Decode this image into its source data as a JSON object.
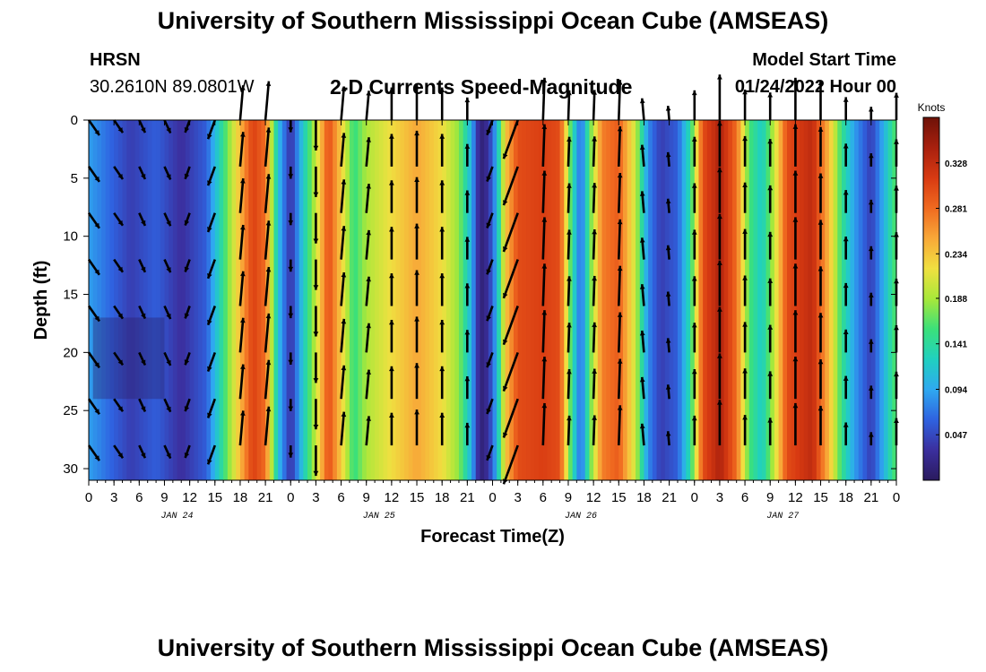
{
  "header": {
    "title": "University of Southern Mississippi Ocean Cube (AMSEAS)",
    "station": "HRSN",
    "coords": "30.2610N  89.0801W",
    "subtitle": "2-D Currents Speed-Magnitude",
    "start_label": "Model Start Time",
    "start_value": "01/24/2022 Hour 00"
  },
  "footer": {
    "title": "University of Southern Mississippi Ocean Cube (AMSEAS)"
  },
  "chart_data": {
    "type": "heatmap",
    "title": "2-D Currents Speed-Magnitude",
    "xlabel": "Forecast Time(Z)",
    "ylabel": "Depth (ft)",
    "x_range_hours": [
      0,
      96
    ],
    "y_range_ft": [
      0,
      31
    ],
    "x_tick_labels": [
      "0",
      "3",
      "6",
      "9",
      "12",
      "15",
      "18",
      "21",
      "0",
      "3",
      "6",
      "9",
      "12",
      "15",
      "18",
      "21",
      "0",
      "3",
      "6",
      "9",
      "12",
      "15",
      "18",
      "21",
      "0",
      "3",
      "6",
      "9",
      "12",
      "15",
      "18",
      "21",
      "0"
    ],
    "y_ticks": [
      0,
      5,
      10,
      15,
      20,
      25,
      30
    ],
    "day_labels": [
      {
        "label": "JAN 24",
        "hour": 10.5
      },
      {
        "label": "JAN 25",
        "hour": 34.5
      },
      {
        "label": "JAN 26",
        "hour": 58.5
      },
      {
        "label": "JAN 27",
        "hour": 82.5
      }
    ],
    "colorbar": {
      "units": "Knots",
      "min": 0.0,
      "max": 0.375,
      "ticks": [
        "0.328",
        "0.281",
        "0.234",
        "0.188",
        "0.141",
        "0.094",
        "0.047"
      ],
      "colors": [
        "#2a1a5e",
        "#3b2f9e",
        "#2f62e0",
        "#2fa9f0",
        "#20d0c0",
        "#3be07a",
        "#a8e83a",
        "#f0e040",
        "#f8a838",
        "#f06a20",
        "#d83a12",
        "#a8200e",
        "#6e1208"
      ]
    },
    "speed_knots_by_hour": [
      {
        "hour": 0,
        "speed": 0.09
      },
      {
        "hour": 2,
        "speed": 0.07
      },
      {
        "hour": 5,
        "speed": 0.04
      },
      {
        "hour": 8,
        "speed": 0.06
      },
      {
        "hour": 11,
        "speed": 0.03
      },
      {
        "hour": 14,
        "speed": 0.06
      },
      {
        "hour": 16,
        "speed": 0.15
      },
      {
        "hour": 18,
        "speed": 0.24
      },
      {
        "hour": 19.5,
        "speed": 0.31
      },
      {
        "hour": 21,
        "speed": 0.28
      },
      {
        "hour": 22.5,
        "speed": 0.11
      },
      {
        "hour": 24,
        "speed": 0.03
      },
      {
        "hour": 25.5,
        "speed": 0.12
      },
      {
        "hour": 27,
        "speed": 0.2
      },
      {
        "hour": 28.5,
        "speed": 0.3
      },
      {
        "hour": 30,
        "speed": 0.23
      },
      {
        "hour": 31.5,
        "speed": 0.15
      },
      {
        "hour": 33,
        "speed": 0.19
      },
      {
        "hour": 36,
        "speed": 0.22
      },
      {
        "hour": 39,
        "speed": 0.25
      },
      {
        "hour": 42,
        "speed": 0.22
      },
      {
        "hour": 44,
        "speed": 0.18
      },
      {
        "hour": 45.5,
        "speed": 0.1
      },
      {
        "hour": 46.5,
        "speed": 0.01
      },
      {
        "hour": 47.5,
        "speed": 0.03
      },
      {
        "hour": 48.5,
        "speed": 0.1
      },
      {
        "hour": 49.5,
        "speed": 0.23
      },
      {
        "hour": 51,
        "speed": 0.3
      },
      {
        "hour": 54,
        "speed": 0.31
      },
      {
        "hour": 56,
        "speed": 0.3
      },
      {
        "hour": 57.5,
        "speed": 0.14
      },
      {
        "hour": 58.5,
        "speed": 0.06
      },
      {
        "hour": 59.5,
        "speed": 0.16
      },
      {
        "hour": 61,
        "speed": 0.27
      },
      {
        "hour": 63,
        "speed": 0.29
      },
      {
        "hour": 65,
        "speed": 0.2
      },
      {
        "hour": 66.5,
        "speed": 0.08
      },
      {
        "hour": 68,
        "speed": 0.04
      },
      {
        "hour": 70,
        "speed": 0.06
      },
      {
        "hour": 71.5,
        "speed": 0.14
      },
      {
        "hour": 73,
        "speed": 0.3
      },
      {
        "hour": 75,
        "speed": 0.34
      },
      {
        "hour": 77,
        "speed": 0.28
      },
      {
        "hour": 78.5,
        "speed": 0.16
      },
      {
        "hour": 80,
        "speed": 0.12
      },
      {
        "hour": 81.5,
        "speed": 0.2
      },
      {
        "hour": 83,
        "speed": 0.3
      },
      {
        "hour": 86,
        "speed": 0.33
      },
      {
        "hour": 88,
        "speed": 0.24
      },
      {
        "hour": 89.5,
        "speed": 0.15
      },
      {
        "hour": 91,
        "speed": 0.09
      },
      {
        "hour": 93,
        "speed": 0.04
      },
      {
        "hour": 94.5,
        "speed": 0.1
      },
      {
        "hour": 96,
        "speed": 0.17
      }
    ],
    "vector_depths_ft": [
      0,
      4,
      8,
      12,
      16,
      20,
      24,
      28
    ],
    "vector_directions_deg": [
      {
        "hour": 0,
        "dir": 145
      },
      {
        "hour": 6,
        "dir": 155
      },
      {
        "hour": 12,
        "dir": 200
      },
      {
        "hour": 18,
        "dir": 5
      },
      {
        "hour": 24,
        "dir": 180
      },
      {
        "hour": 30,
        "dir": 5
      },
      {
        "hour": 36,
        "dir": 0
      },
      {
        "hour": 42,
        "dir": 0
      },
      {
        "hour": 48,
        "dir": 200
      },
      {
        "hour": 54,
        "dir": 2
      },
      {
        "hour": 60,
        "dir": 2
      },
      {
        "hour": 66,
        "dir": 355
      },
      {
        "hour": 72,
        "dir": 0
      },
      {
        "hour": 78,
        "dir": 0
      },
      {
        "hour": 84,
        "dir": 0
      },
      {
        "hour": 90,
        "dir": 0
      },
      {
        "hour": 96,
        "dir": 0
      }
    ]
  }
}
